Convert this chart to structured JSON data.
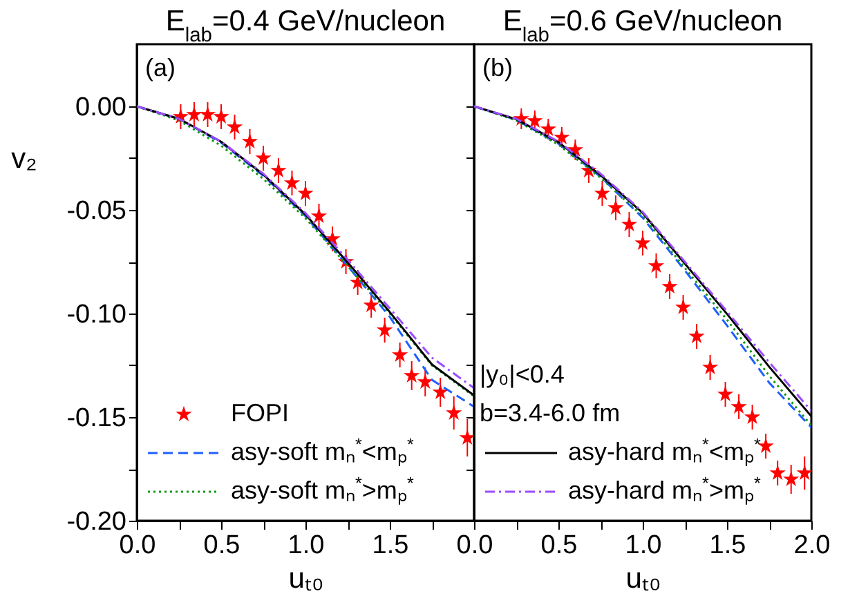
{
  "chart_data": [
    {
      "type": "line",
      "title": "E$_{lab}$=0.4 GeV/nucleon",
      "xlabel": "uₜ₀",
      "ylabel": "v₂",
      "annotations": [
        "(a)"
      ],
      "legend": "bottom left",
      "tick_labels": true,
      "xlim": [
        0,
        2
      ],
      "xticks": [
        {
          "value": 0,
          "label": "0.0"
        },
        {
          "value": 0.25,
          "label": null
        },
        {
          "value": 0.5,
          "label": "0.5"
        },
        {
          "value": 0.75,
          "label": null
        },
        {
          "value": 1,
          "label": "1.0"
        },
        {
          "value": 1.25,
          "label": null
        },
        {
          "value": 1.5,
          "label": "1.5"
        },
        {
          "value": 1.75,
          "label": null
        },
        {
          "value": 2,
          "label": null
        }
      ],
      "ylim": [
        -0.2,
        0.03
      ],
      "yticks": [
        {
          "value": 0,
          "label": "0.00"
        },
        {
          "value": -0.025,
          "label": null
        },
        {
          "value": -0.05,
          "label": "-0.05"
        },
        {
          "value": -0.075,
          "label": null
        },
        {
          "value": -0.1,
          "label": "-0.10"
        },
        {
          "value": -0.125,
          "label": null
        },
        {
          "value": -0.15,
          "label": "-0.15"
        },
        {
          "value": -0.175,
          "label": null
        },
        {
          "value": -0.2,
          "label": "-0.20"
        }
      ],
      "series": [
        {
          "name": "FOPI",
          "type": "scatter",
          "marker": "star",
          "color": "#ff0000",
          "x": [
            0.26,
            0.34,
            0.42,
            0.5,
            0.58,
            0.67,
            0.75,
            0.84,
            0.92,
            1.0,
            1.08,
            1.16,
            1.24,
            1.31,
            1.39,
            1.47,
            1.56,
            1.63,
            1.71,
            1.8,
            1.88,
            1.96
          ],
          "values": [
            -0.005,
            -0.004,
            -0.004,
            -0.005,
            -0.01,
            -0.017,
            -0.025,
            -0.031,
            -0.037,
            -0.042,
            -0.053,
            -0.064,
            -0.075,
            -0.085,
            -0.096,
            -0.108,
            -0.12,
            -0.13,
            -0.133,
            -0.138,
            -0.148,
            -0.16
          ],
          "errors": [
            0.006,
            0.006,
            0.006,
            0.006,
            0.006,
            0.006,
            0.006,
            0.006,
            0.006,
            0.006,
            0.006,
            0.006,
            0.006,
            0.006,
            0.006,
            0.006,
            0.006,
            0.007,
            0.007,
            0.007,
            0.008,
            0.009
          ]
        },
        {
          "name": "asy-soft mₙ$^{*}$<mₚ$^{*}$",
          "type": "line",
          "line_style": "dashed",
          "color": "#1f5fff",
          "x": [
            0,
            0.25,
            0.5,
            0.75,
            1,
            1.25,
            1.5,
            1.75,
            2
          ],
          "values": [
            0,
            -0.006,
            -0.0175,
            -0.0335,
            -0.053,
            -0.077,
            -0.1016,
            -0.132,
            -0.145
          ]
        },
        {
          "name": "asy-soft mₙ$^{*}$>mₚ$^{*}$",
          "type": "line",
          "line_style": "dotted",
          "color": "#119911",
          "x": [
            0,
            0.25,
            0.5,
            0.75,
            1,
            1.25,
            1.5,
            1.75,
            2
          ],
          "values": [
            0,
            -0.0068,
            -0.019,
            -0.035,
            -0.054,
            -0.077,
            -0.1,
            -0.125,
            -0.14
          ]
        },
        {
          "type": "line",
          "line_style": "solid",
          "color": "#000000",
          "x": [
            0,
            0.25,
            0.5,
            0.75,
            1,
            1.25,
            1.5,
            1.75,
            2
          ],
          "values": [
            0,
            -0.006,
            -0.0171,
            -0.0329,
            -0.0522,
            -0.0753,
            -0.0993,
            -0.1246,
            -0.1395
          ]
        },
        {
          "type": "line",
          "line_style": "dashdot",
          "color": "#9b4dff",
          "x": [
            0,
            0.25,
            0.5,
            0.75,
            1,
            1.25,
            1.5,
            1.75,
            2
          ],
          "values": [
            0,
            -0.006,
            -0.017,
            -0.0325,
            -0.0515,
            -0.074,
            -0.0975,
            -0.1213,
            -0.136
          ]
        }
      ]
    },
    {
      "type": "line",
      "title": "E$_{lab}$=0.6 GeV/nucleon",
      "xlabel": "uₜ₀",
      "annotations": [
        "(b)",
        "|y₀|<0.4",
        "b=3.4-6.0 fm"
      ],
      "legend": "bottom left",
      "tick_labels": "x",
      "xlim": [
        0,
        2
      ],
      "xticks": [
        {
          "value": 0,
          "label": "0.0"
        },
        {
          "value": 0.25,
          "label": null
        },
        {
          "value": 0.5,
          "label": "0.5"
        },
        {
          "value": 0.75,
          "label": null
        },
        {
          "value": 1,
          "label": "1.0"
        },
        {
          "value": 1.25,
          "label": null
        },
        {
          "value": 1.5,
          "label": "1.5"
        },
        {
          "value": 1.75,
          "label": null
        },
        {
          "value": 2,
          "label": "2.0"
        }
      ],
      "ylim": [
        -0.2,
        0.03
      ],
      "yticks": [
        {
          "value": 0,
          "label": null
        },
        {
          "value": -0.025,
          "label": null
        },
        {
          "value": -0.05,
          "label": null
        },
        {
          "value": -0.075,
          "label": null
        },
        {
          "value": -0.1,
          "label": null
        },
        {
          "value": -0.125,
          "label": null
        },
        {
          "value": -0.15,
          "label": null
        },
        {
          "value": -0.175,
          "label": null
        },
        {
          "value": -0.2,
          "label": null
        }
      ],
      "series": [
        {
          "type": "scatter",
          "marker": "star",
          "color": "#ff0000",
          "x": [
            0.28,
            0.36,
            0.44,
            0.52,
            0.6,
            0.68,
            0.76,
            0.84,
            0.92,
            1.0,
            1.08,
            1.16,
            1.24,
            1.32,
            1.4,
            1.49,
            1.57,
            1.65,
            1.73,
            1.8,
            1.88,
            1.96
          ],
          "values": [
            -0.006,
            -0.007,
            -0.011,
            -0.015,
            -0.021,
            -0.031,
            -0.042,
            -0.049,
            -0.057,
            -0.066,
            -0.077,
            -0.087,
            -0.097,
            -0.111,
            -0.126,
            -0.139,
            -0.145,
            -0.15,
            -0.164,
            -0.177,
            -0.18,
            -0.177
          ],
          "errors": [
            0.005,
            0.005,
            0.005,
            0.005,
            0.005,
            0.006,
            0.006,
            0.006,
            0.006,
            0.006,
            0.006,
            0.006,
            0.006,
            0.006,
            0.006,
            0.006,
            0.006,
            0.006,
            0.006,
            0.006,
            0.007,
            0.008
          ]
        },
        {
          "type": "line",
          "line_style": "dashed",
          "color": "#1f5fff",
          "x": [
            0,
            0.25,
            0.5,
            0.75,
            1,
            1.25,
            1.5,
            1.75,
            2
          ],
          "values": [
            0,
            -0.0065,
            -0.018,
            -0.034,
            -0.0538,
            -0.0792,
            -0.1058,
            -0.1334,
            -0.155
          ]
        },
        {
          "type": "line",
          "line_style": "dotted",
          "color": "#119911",
          "x": [
            0,
            0.25,
            0.5,
            0.75,
            1,
            1.25,
            1.5,
            1.75,
            2
          ],
          "values": [
            0,
            -0.0068,
            -0.0185,
            -0.0345,
            -0.053,
            -0.078,
            -0.103,
            -0.13,
            -0.154
          ]
        },
        {
          "name": "asy-hard mₙ$^{*}$<mₚ$^{*}$",
          "type": "line",
          "line_style": "solid",
          "color": "#000000",
          "x": [
            0,
            0.25,
            0.5,
            0.75,
            1,
            1.25,
            1.5,
            1.75,
            2
          ],
          "values": [
            0,
            -0.0062,
            -0.0173,
            -0.0332,
            -0.0515,
            -0.0759,
            -0.1002,
            -0.1257,
            -0.1496
          ]
        },
        {
          "name": "asy-hard mₙ$^{*}$>mₚ$^{*}$",
          "type": "line",
          "line_style": "dashdot",
          "color": "#9b4dff",
          "x": [
            0,
            0.25,
            0.5,
            0.75,
            1,
            1.25,
            1.5,
            1.75,
            2
          ],
          "values": [
            0,
            -0.006,
            -0.017,
            -0.0325,
            -0.051,
            -0.075,
            -0.099,
            -0.1235,
            -0.147
          ]
        }
      ]
    }
  ]
}
